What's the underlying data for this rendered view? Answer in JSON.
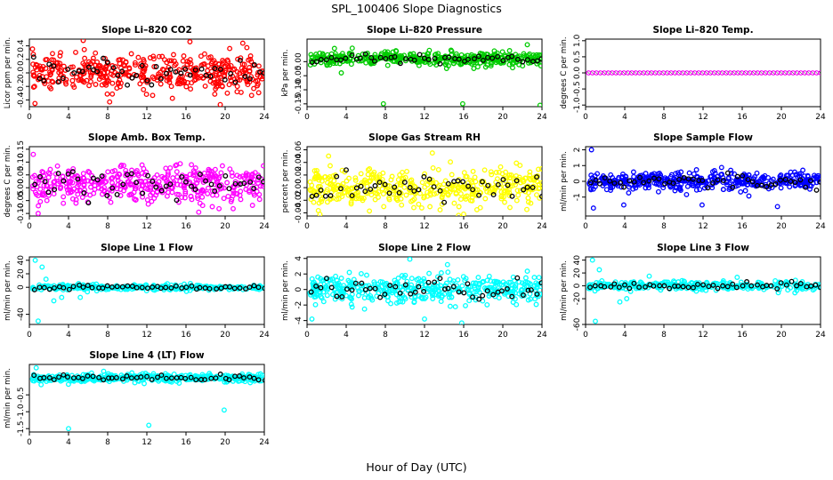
{
  "figure": {
    "title": "SPL_100406  Slope Diagnostics",
    "xlabel": "Hour of Day (UTC)"
  },
  "chart_data": [
    {
      "type": "scatter",
      "title": "Slope Li–820 CO2",
      "ylabel": "Licor ppm per min.",
      "xlim": [
        0,
        24
      ],
      "ylim": [
        -0.5,
        0.5
      ],
      "xticks": [
        0,
        4,
        8,
        12,
        16,
        20,
        24
      ],
      "yticks": [
        -0.4,
        -0.2,
        0.0,
        0.2,
        0.4
      ],
      "ytick_labels": [
        "-0.4",
        "-0.2",
        "0.0",
        "0.2",
        "0.4"
      ],
      "color": "#ff0000",
      "n": 420,
      "center": 0.0,
      "spread": 0.13,
      "outliers": [
        [
          5.5,
          0.48
        ],
        [
          16.4,
          0.46
        ],
        [
          21.8,
          0.44
        ],
        [
          19.5,
          -0.47
        ],
        [
          8.2,
          -0.43
        ]
      ]
    },
    {
      "type": "scatter",
      "title": "Slope Li–820 Pressure",
      "ylabel": "kPa per min.",
      "xlim": [
        0,
        24
      ],
      "ylim": [
        -0.16,
        0.08
      ],
      "xticks": [
        0,
        4,
        8,
        12,
        16,
        20,
        24
      ],
      "yticks": [
        -0.15,
        -0.1,
        -0.05,
        0.0
      ],
      "ytick_labels": [
        "-0.15",
        "-0.10",
        "-0.05",
        "0.00"
      ],
      "color": "#00cc00",
      "n": 420,
      "center": 0.01,
      "spread": 0.012,
      "outliers": [
        [
          7.8,
          -0.15
        ],
        [
          15.9,
          -0.15
        ],
        [
          23.8,
          -0.155
        ],
        [
          22.5,
          0.06
        ],
        [
          3.5,
          -0.04
        ]
      ]
    },
    {
      "type": "scatter",
      "title": "Slope Li–820 Temp.",
      "ylabel": "degrees C per min.",
      "xlim": [
        0,
        24
      ],
      "ylim": [
        -1.05,
        1.05
      ],
      "xticks": [
        0,
        4,
        8,
        12,
        16,
        20,
        24
      ],
      "yticks": [
        -1.0,
        -0.5,
        0.0,
        0.5,
        1.0
      ],
      "ytick_labels": [
        "-1.0",
        "-0.5",
        "0.0",
        "0.5",
        "1.0"
      ],
      "color": "#ff00ff",
      "n": 60,
      "center": 0.0,
      "spread": 0.0,
      "outliers": []
    },
    {
      "type": "scatter",
      "title": "Slope Amb. Box Temp.",
      "ylabel": "degrees C per min.",
      "xlim": [
        0,
        24
      ],
      "ylim": [
        -0.11,
        0.16
      ],
      "xticks": [
        0,
        4,
        8,
        12,
        16,
        20,
        24
      ],
      "yticks": [
        -0.1,
        -0.05,
        0.0,
        0.05,
        0.1,
        0.15
      ],
      "ytick_labels": [
        "-0.10",
        "-0.05",
        "0.00",
        "0.05",
        "0.10",
        "0.15"
      ],
      "color": "#ff00ff",
      "n": 420,
      "center": 0.01,
      "spread": 0.035,
      "outliers": [
        [
          0.4,
          0.13
        ],
        [
          0.9,
          -0.1
        ],
        [
          17.3,
          -0.095
        ]
      ]
    },
    {
      "type": "scatter",
      "title": "Slope Gas Stream RH",
      "ylabel": "percent per min.",
      "xlim": [
        0,
        24
      ],
      "ylim": [
        -0.045,
        0.065
      ],
      "xticks": [
        0,
        4,
        8,
        12,
        16,
        20,
        24
      ],
      "yticks": [
        -0.04,
        -0.02,
        0.0,
        0.02,
        0.04,
        0.06
      ],
      "ytick_labels": [
        "-0.04",
        "-0.02",
        "0.00",
        "0.02",
        "0.04",
        "0.06"
      ],
      "color": "#ffff00",
      "n": 420,
      "center": 0.0,
      "spread": 0.015,
      "outliers": [
        [
          12.8,
          0.055
        ],
        [
          2.2,
          0.05
        ],
        [
          16.0,
          -0.042
        ]
      ]
    },
    {
      "type": "scatter",
      "title": "Slope Sample Flow",
      "ylabel": "ml/min per min.",
      "xlim": [
        0,
        24
      ],
      "ylim": [
        -2.2,
        2.2
      ],
      "xticks": [
        0,
        4,
        8,
        12,
        16,
        20,
        24
      ],
      "yticks": [
        -1,
        0,
        1,
        2
      ],
      "ytick_labels": [
        "-1",
        "0",
        "1",
        "2"
      ],
      "color": "#0000ff",
      "n": 420,
      "center": 0.0,
      "spread": 0.28,
      "outliers": [
        [
          0.6,
          2.0
        ],
        [
          0.8,
          -1.7
        ],
        [
          3.9,
          -1.5
        ],
        [
          11.9,
          -1.5
        ],
        [
          19.6,
          -1.6
        ]
      ]
    },
    {
      "type": "scatter",
      "title": "Slope Line 1 Flow",
      "ylabel": "ml/min per min.",
      "xlim": [
        0,
        24
      ],
      "ylim": [
        -55,
        45
      ],
      "xticks": [
        0,
        4,
        8,
        12,
        16,
        20,
        24
      ],
      "yticks": [
        -40,
        0,
        20,
        40
      ],
      "ytick_labels": [
        "-40",
        "0",
        "20",
        "40"
      ],
      "color": "#00ffff",
      "n": 300,
      "center": 0.0,
      "spread": 2.0,
      "outliers": [
        [
          0.6,
          40
        ],
        [
          0.9,
          -50
        ],
        [
          1.3,
          30
        ],
        [
          2.5,
          -20
        ],
        [
          3.3,
          -15
        ],
        [
          5.2,
          -15
        ],
        [
          1.7,
          12
        ]
      ]
    },
    {
      "type": "scatter",
      "title": "Slope Line 2 Flow",
      "ylabel": "ml/min per min.",
      "xlim": [
        0,
        24
      ],
      "ylim": [
        -4.5,
        4.2
      ],
      "xticks": [
        0,
        4,
        8,
        12,
        16,
        20,
        24
      ],
      "yticks": [
        -4,
        -2,
        0,
        2,
        4
      ],
      "ytick_labels": [
        "-4",
        "-2",
        "0",
        "2",
        "4"
      ],
      "color": "#00ffff",
      "n": 420,
      "center": 0.0,
      "spread": 0.9,
      "outliers": [
        [
          0.5,
          -3.8
        ],
        [
          10.5,
          3.9
        ],
        [
          15.8,
          -4.3
        ],
        [
          12.0,
          -3.8
        ]
      ]
    },
    {
      "type": "scatter",
      "title": "Slope Line 3 Flow",
      "ylabel": "ml/min per min.",
      "xlim": [
        0,
        24
      ],
      "ylim": [
        -60,
        45
      ],
      "xticks": [
        0,
        4,
        8,
        12,
        16,
        20,
        24
      ],
      "yticks": [
        -60,
        -20,
        0,
        20,
        40
      ],
      "ytick_labels": [
        "-60",
        "-20",
        "0",
        "20",
        "40"
      ],
      "color": "#00ffff",
      "n": 320,
      "center": 0.0,
      "spread": 3.5,
      "outliers": [
        [
          0.7,
          40
        ],
        [
          1.0,
          -55
        ],
        [
          1.4,
          25
        ],
        [
          3.5,
          -25
        ],
        [
          4.2,
          -20
        ],
        [
          6.5,
          15
        ]
      ]
    },
    {
      "type": "scatter",
      "title": "Slope Line 4 (LT) Flow",
      "ylabel": "ml/min per min.",
      "xlim": [
        0,
        24
      ],
      "ylim": [
        -1.6,
        0.4
      ],
      "xticks": [
        0,
        4,
        8,
        12,
        16,
        20,
        24
      ],
      "yticks": [
        -1.5,
        -1.0,
        -0.5
      ],
      "ytick_labels": [
        "-1.5",
        "-1.0",
        "-0.5"
      ],
      "color": "#00ffff",
      "n": 420,
      "center": 0.0,
      "spread": 0.06,
      "outliers": [
        [
          0.7,
          0.3
        ],
        [
          4.0,
          -1.5
        ],
        [
          12.2,
          -1.4
        ],
        [
          19.9,
          -0.95
        ],
        [
          1.2,
          -0.2
        ]
      ]
    }
  ]
}
